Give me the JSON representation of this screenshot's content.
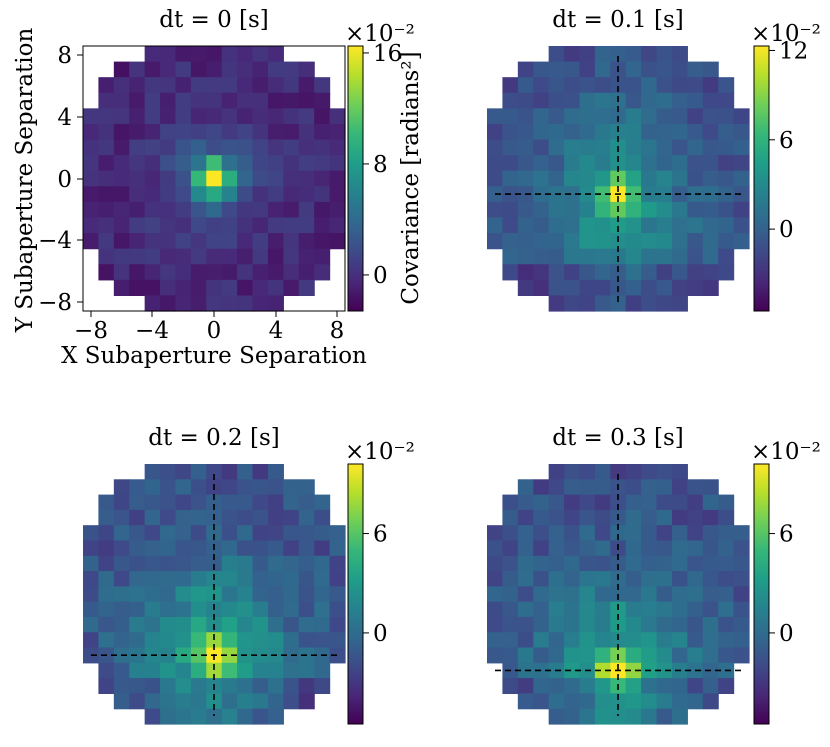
{
  "chart_data": [
    {
      "type": "heatmap",
      "title": "dt = 0 [s]",
      "xlabel": "X Subaperture Separation",
      "ylabel": "Y Subaperture Separation",
      "x_ticks": [
        "−8",
        "−4",
        "0",
        "4",
        "8"
      ],
      "y_ticks": [
        "8",
        "4",
        "0",
        "−4",
        "−8"
      ],
      "xlim": [
        -8.5,
        8.5
      ],
      "ylim": [
        -8.5,
        8.5
      ],
      "colorbar": {
        "label": "Covariance [radians²]",
        "multiplier": "×10⁻²",
        "range": [
          -2.6,
          16.5
        ],
        "ticks": [
          0,
          8,
          16
        ],
        "tick_labels": [
          "0",
          "8",
          "16"
        ]
      },
      "peak": {
        "x": 0,
        "y": 0,
        "value": 16.5
      },
      "crosshair": null,
      "grid_mask": "circular aperture, 17x17 separations"
    },
    {
      "type": "heatmap",
      "title": "dt = 0.1 [s]",
      "xlabel": "",
      "ylabel": "",
      "xlim": [
        -8.5,
        8.5
      ],
      "ylim": [
        -8.5,
        8.5
      ],
      "colorbar": {
        "label": "",
        "multiplier": "×10⁻²",
        "range": [
          -5.5,
          12.3
        ],
        "ticks": [
          0,
          6,
          12
        ],
        "tick_labels": [
          "0",
          "6",
          "12"
        ]
      },
      "peak": {
        "x": 0,
        "y": -1,
        "value": 12.3
      },
      "crosshair": {
        "x": 0,
        "y": -1
      }
    },
    {
      "type": "heatmap",
      "title": "dt = 0.2 [s]",
      "xlabel": "",
      "ylabel": "",
      "xlim": [
        -8.5,
        8.5
      ],
      "ylim": [
        -8.5,
        8.5
      ],
      "colorbar": {
        "label": "",
        "multiplier": "×10⁻²",
        "range": [
          -5.5,
          10.2
        ],
        "ticks": [
          0,
          6
        ],
        "tick_labels": [
          "0",
          "6"
        ]
      },
      "peak": {
        "x": 0,
        "y": -4,
        "value": 10.2
      },
      "crosshair": {
        "x": 0,
        "y": -4
      }
    },
    {
      "type": "heatmap",
      "title": "dt = 0.3 [s]",
      "xlabel": "",
      "ylabel": "",
      "xlim": [
        -8.5,
        8.5
      ],
      "ylim": [
        -8.5,
        8.5
      ],
      "colorbar": {
        "label": "",
        "multiplier": "×10⁻²",
        "range": [
          -5.5,
          10.2
        ],
        "ticks": [
          0,
          6
        ],
        "tick_labels": [
          "0",
          "6"
        ]
      },
      "peak": {
        "x": 0,
        "y": -5,
        "value": 10.2
      },
      "crosshair": {
        "x": 0,
        "y": -5
      }
    }
  ],
  "colormap": {
    "name": "viridis",
    "stops": [
      "#440154",
      "#482878",
      "#3e4a89",
      "#31688e",
      "#26828e",
      "#1f9e89",
      "#35b779",
      "#6ece58",
      "#b5de2b",
      "#fde725"
    ]
  }
}
